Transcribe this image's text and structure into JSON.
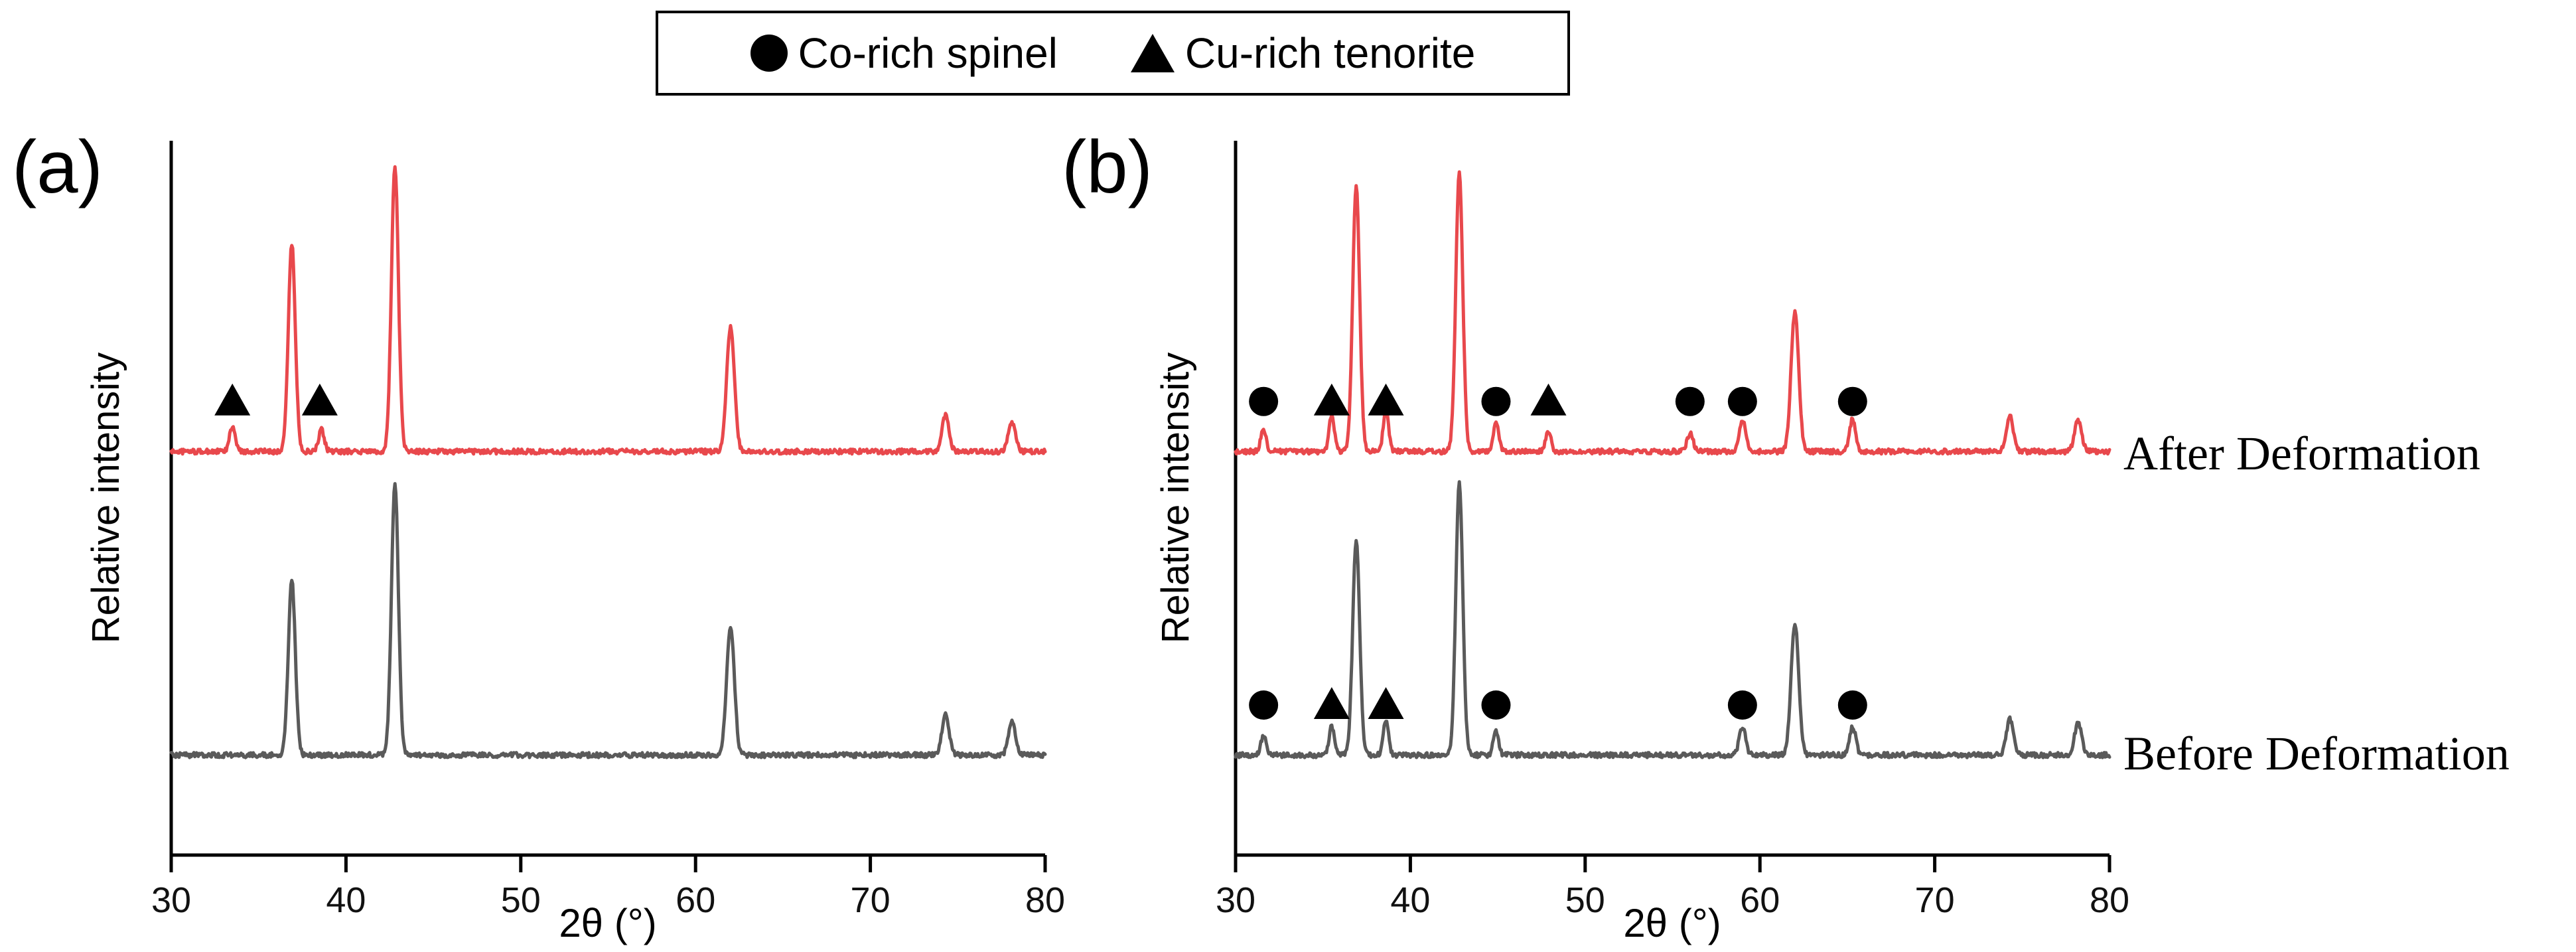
{
  "chart_data": {
    "type": "line",
    "title": "",
    "xlabel": "2θ (°)",
    "ylabel": "Relative intensity",
    "x_range": [
      30,
      80
    ],
    "x_ticks": [
      30,
      40,
      50,
      60,
      70,
      80
    ],
    "grid": false,
    "legend_position": "top-center",
    "legend": [
      {
        "symbol": "circle",
        "label": "Co-rich spinel"
      },
      {
        "symbol": "triangle",
        "label": "Cu-rich tenorite"
      }
    ],
    "peaks_format": "[two_theta_deg, peak_height_fraction_of_plot, sigma_deg]",
    "panels": [
      {
        "tag": "(a)",
        "traces": [
          {
            "name": "After Deformation",
            "color": "#e8484c",
            "baseline": 0.565,
            "peaks": [
              [
                33.5,
                0.035,
                0.16
              ],
              [
                36.9,
                0.29,
                0.2
              ],
              [
                38.6,
                0.03,
                0.16
              ],
              [
                42.8,
                0.4,
                0.2
              ],
              [
                62.0,
                0.175,
                0.22
              ],
              [
                74.3,
                0.05,
                0.2
              ],
              [
                78.1,
                0.042,
                0.2
              ]
            ],
            "markers": [
              {
                "x": 33.5,
                "symbol": "triangle"
              },
              {
                "x": 38.5,
                "symbol": "triangle"
              }
            ]
          },
          {
            "name": "Before Deformation",
            "color": "#5a5a5a",
            "baseline": 0.14,
            "peaks": [
              [
                36.9,
                0.244,
                0.2
              ],
              [
                42.8,
                0.38,
                0.2
              ],
              [
                62.0,
                0.181,
                0.22
              ],
              [
                74.3,
                0.058,
                0.2
              ],
              [
                78.1,
                0.047,
                0.2
              ]
            ],
            "markers": []
          }
        ]
      },
      {
        "tag": "(b)",
        "traces": [
          {
            "name": "After Deformation",
            "color": "#e8484c",
            "baseline": 0.565,
            "peaks": [
              [
                31.6,
                0.032,
                0.15
              ],
              [
                35.5,
                0.05,
                0.15
              ],
              [
                36.9,
                0.37,
                0.2
              ],
              [
                38.6,
                0.06,
                0.15
              ],
              [
                42.8,
                0.39,
                0.2
              ],
              [
                44.9,
                0.04,
                0.15
              ],
              [
                47.9,
                0.028,
                0.15
              ],
              [
                56.0,
                0.025,
                0.18
              ],
              [
                59.0,
                0.045,
                0.18
              ],
              [
                62.0,
                0.195,
                0.22
              ],
              [
                65.3,
                0.045,
                0.18
              ],
              [
                74.3,
                0.05,
                0.2
              ],
              [
                78.2,
                0.045,
                0.2
              ]
            ],
            "markers": [
              {
                "x": 31.6,
                "symbol": "circle"
              },
              {
                "x": 35.5,
                "symbol": "triangle"
              },
              {
                "x": 38.6,
                "symbol": "triangle"
              },
              {
                "x": 44.9,
                "symbol": "circle"
              },
              {
                "x": 47.9,
                "symbol": "triangle"
              },
              {
                "x": 56.0,
                "symbol": "circle"
              },
              {
                "x": 59.0,
                "symbol": "circle"
              },
              {
                "x": 65.3,
                "symbol": "circle"
              }
            ]
          },
          {
            "name": "Before Deformation",
            "color": "#5a5a5a",
            "baseline": 0.14,
            "peaks": [
              [
                31.6,
                0.028,
                0.15
              ],
              [
                35.5,
                0.04,
                0.15
              ],
              [
                36.9,
                0.3,
                0.2
              ],
              [
                38.6,
                0.05,
                0.15
              ],
              [
                42.8,
                0.38,
                0.2
              ],
              [
                44.9,
                0.035,
                0.15
              ],
              [
                59.0,
                0.04,
                0.18
              ],
              [
                62.0,
                0.185,
                0.22
              ],
              [
                65.3,
                0.04,
                0.18
              ],
              [
                74.3,
                0.05,
                0.2
              ],
              [
                78.2,
                0.045,
                0.2
              ]
            ],
            "markers": [
              {
                "x": 31.6,
                "symbol": "circle"
              },
              {
                "x": 35.5,
                "symbol": "triangle"
              },
              {
                "x": 38.6,
                "symbol": "triangle"
              },
              {
                "x": 44.9,
                "symbol": "circle"
              },
              {
                "x": 59.0,
                "symbol": "circle"
              },
              {
                "x": 65.3,
                "symbol": "circle"
              }
            ]
          }
        ]
      }
    ],
    "annotations_right": [
      {
        "text": "After Deformation"
      },
      {
        "text": "Before Deformation"
      }
    ]
  }
}
